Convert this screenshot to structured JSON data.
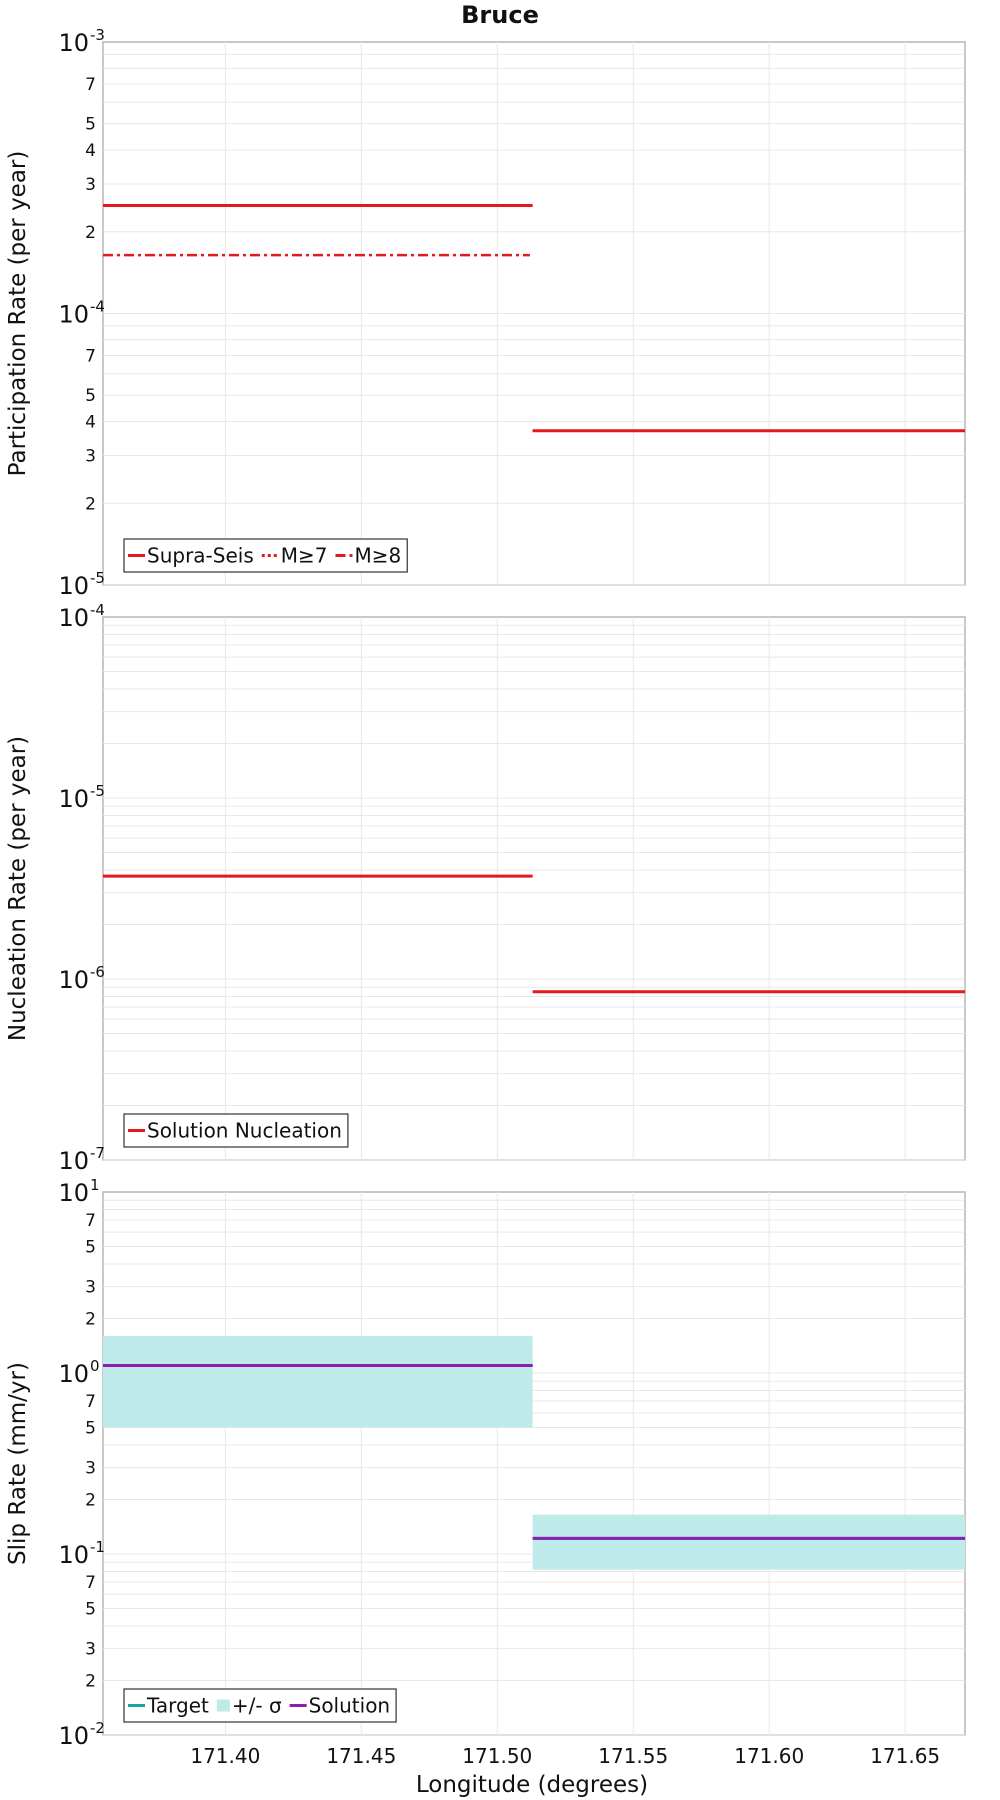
{
  "chart_data": {
    "title": "Bruce",
    "xlabel": "Longitude (degrees)",
    "xlim": [
      171.355,
      171.672
    ],
    "xticks": [
      "171.40",
      "171.45",
      "171.50",
      "171.55",
      "171.60",
      "171.65"
    ],
    "xtick_values": [
      171.4,
      171.45,
      171.5,
      171.55,
      171.6,
      171.65
    ],
    "panels": [
      {
        "type": "line",
        "ylabel": "Participation Rate (per year)",
        "yscale": "log",
        "ylim_exp": [
          -5,
          -3
        ],
        "minor_labels": [
          2,
          3,
          4,
          5,
          7
        ],
        "grid": true,
        "legend_position": "bottom-left",
        "legend": [
          {
            "name": "Supra-Seis",
            "color": "#e31a1c",
            "dash": "solid"
          },
          {
            "name": "M≥7",
            "color": "#e31a1c",
            "dash": "dotted"
          },
          {
            "name": "M≥8",
            "color": "#e31a1c",
            "dash": "dashdot"
          }
        ],
        "series": [
          {
            "name": "Supra-Seis",
            "color": "#e31a1c",
            "dash": "solid",
            "width": 3,
            "segments": [
              {
                "x": [
                  171.355,
                  171.513
                ],
                "y": 0.00025
              },
              {
                "x": [
                  171.513,
                  171.672
                ],
                "y": 3.7e-05
              }
            ]
          },
          {
            "name": "M≥7",
            "color": "#e31a1c",
            "dash": "dotted",
            "width": 2.5,
            "segments": [
              {
                "x": [
                  171.355,
                  171.513
                ],
                "y": 0.00025
              },
              {
                "x": [
                  171.513,
                  171.672
                ],
                "y": 3.7e-05
              }
            ]
          },
          {
            "name": "M≥8",
            "color": "#e31a1c",
            "dash": "dashdot",
            "width": 2.5,
            "segments": [
              {
                "x": [
                  171.355,
                  171.512
                ],
                "y": 0.000164
              }
            ]
          }
        ]
      },
      {
        "type": "line",
        "ylabel": "Nucleation Rate (per year)",
        "yscale": "log",
        "ylim_exp": [
          -7,
          -4
        ],
        "minor_labels": [],
        "grid": true,
        "legend_position": "bottom-left",
        "legend": [
          {
            "name": "Solution Nucleation",
            "color": "#e31a1c",
            "dash": "solid"
          }
        ],
        "series": [
          {
            "name": "Solution Nucleation",
            "color": "#e31a1c",
            "dash": "solid",
            "width": 3,
            "segments": [
              {
                "x": [
                  171.355,
                  171.513
                ],
                "y": 3.7e-06
              },
              {
                "x": [
                  171.513,
                  171.672
                ],
                "y": 8.5e-07
              }
            ]
          }
        ]
      },
      {
        "type": "area",
        "ylabel": "Slip Rate (mm/yr)",
        "yscale": "log",
        "ylim_exp": [
          -2,
          1
        ],
        "minor_labels": [
          2,
          3,
          5,
          7
        ],
        "grid": true,
        "legend_position": "bottom-left",
        "legend": [
          {
            "name": "Target",
            "color": "#1aa3a3",
            "dash": "solid"
          },
          {
            "name": "+/- σ",
            "color": "#bfeaea",
            "dash": "band"
          },
          {
            "name": "Solution",
            "color": "#8a1fb0",
            "dash": "solid"
          }
        ],
        "bands": [
          {
            "name": "+/- σ",
            "color": "#bfeaea",
            "segments": [
              {
                "x": [
                  171.355,
                  171.513
                ],
                "low": 0.5,
                "high": 1.6
              },
              {
                "x": [
                  171.513,
                  171.672
                ],
                "low": 0.082,
                "high": 0.165
              }
            ]
          }
        ],
        "series": [
          {
            "name": "Target",
            "color": "#1aa3a3",
            "dash": "solid",
            "width": 3,
            "segments": [
              {
                "x": [
                  171.355,
                  171.513
                ],
                "y": 1.1
              },
              {
                "x": [
                  171.513,
                  171.672
                ],
                "y": 0.122
              }
            ]
          },
          {
            "name": "Solution",
            "color": "#8a1fb0",
            "dash": "solid",
            "width": 3,
            "segments": [
              {
                "x": [
                  171.355,
                  171.513
                ],
                "y": 1.1
              },
              {
                "x": [
                  171.513,
                  171.672
                ],
                "y": 0.122
              }
            ]
          }
        ]
      }
    ]
  }
}
